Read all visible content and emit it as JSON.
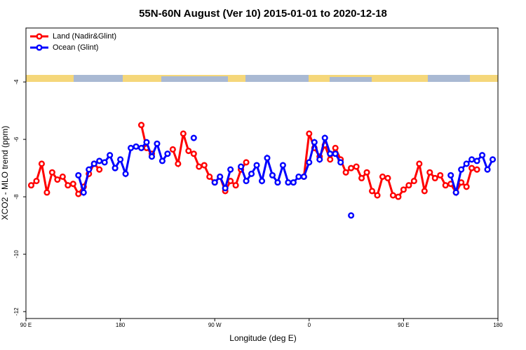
{
  "chart_data": {
    "type": "line",
    "title": "55N-60N August (Ver 10)   2015-01-01 to 2020-12-18",
    "x_label": "Longitude (deg E)",
    "y_label": "XCO2 - MLO trend (ppm)",
    "x": [
      95,
      100,
      105,
      110,
      115,
      120,
      125,
      130,
      135,
      140,
      145,
      150,
      155,
      160,
      165,
      170,
      175,
      180,
      185,
      190,
      195,
      200,
      205,
      210,
      215,
      220,
      225,
      230,
      235,
      240,
      245,
      250,
      255,
      260,
      265,
      270,
      275,
      280,
      285,
      290,
      295,
      300,
      305,
      310,
      315,
      320,
      325,
      330,
      335,
      340,
      345,
      350,
      355,
      360,
      365,
      370,
      375,
      380,
      385,
      390,
      395,
      400,
      405,
      410,
      415,
      420,
      425,
      430,
      435,
      440,
      445,
      450,
      455,
      460,
      465,
      470,
      475,
      480,
      485,
      490,
      495,
      500,
      505,
      510,
      515,
      520,
      525,
      530,
      535
    ],
    "series": [
      {
        "name": "Land (Nadir&Glint)",
        "color": "#ff0000",
        "values": [
          -7.6,
          -7.45,
          -6.85,
          -7.85,
          -7.15,
          -7.4,
          -7.3,
          -7.6,
          -7.55,
          -7.9,
          -7.65,
          -7.2,
          -6.85,
          -7.05,
          null,
          null,
          null,
          null,
          null,
          null,
          null,
          -5.5,
          -6.3,
          -6.5,
          null,
          null,
          null,
          -6.35,
          -6.85,
          -5.8,
          -6.4,
          -6.5,
          -6.95,
          -6.9,
          -7.3,
          -7.5,
          -7.3,
          -7.8,
          -7.45,
          -7.6,
          -7.05,
          -6.8,
          null,
          null,
          null,
          null,
          null,
          null,
          null,
          null,
          null,
          null,
          -7.3,
          -5.8,
          -6.3,
          -6.6,
          -6.2,
          -6.7,
          -6.3,
          -6.7,
          -7.15,
          -7.0,
          -6.95,
          -7.35,
          -7.15,
          -7.8,
          -7.95,
          -7.3,
          -7.35,
          -7.95,
          -8.0,
          -7.75,
          -7.6,
          -7.45,
          -6.85,
          -7.8,
          -7.15,
          -7.35,
          -7.25,
          -7.6,
          -7.55,
          -7.85,
          -7.5,
          -7.65,
          -7.0,
          -7.05,
          null,
          null,
          null
        ]
      },
      {
        "name": "Ocean (Glint)",
        "color": "#0000ff",
        "values": [
          null,
          null,
          null,
          null,
          null,
          null,
          null,
          null,
          null,
          -7.25,
          -7.85,
          -7.05,
          -6.85,
          -6.75,
          -6.8,
          -6.55,
          -7.0,
          -6.7,
          -7.2,
          -6.3,
          -6.25,
          -6.3,
          -6.1,
          -6.6,
          -6.15,
          -6.75,
          -6.5,
          null,
          null,
          null,
          null,
          -5.95,
          null,
          null,
          null,
          -7.5,
          -7.3,
          -7.7,
          -7.05,
          null,
          -6.95,
          -7.45,
          -7.2,
          -6.9,
          -7.45,
          -6.65,
          -7.25,
          -7.5,
          -6.9,
          -7.5,
          -7.5,
          -7.3,
          -7.3,
          -6.8,
          -6.1,
          -6.7,
          -5.95,
          -6.5,
          -6.5,
          -6.8,
          null,
          -8.65,
          null,
          null,
          null,
          null,
          null,
          null,
          null,
          null,
          null,
          null,
          null,
          null,
          null,
          null,
          null,
          null,
          null,
          null,
          -7.25,
          -7.85,
          -7.05,
          -6.85,
          -6.7,
          -6.75,
          -6.55,
          -7.05,
          -6.7
        ]
      }
    ],
    "xlim": [
      90,
      540
    ],
    "xticks": [
      {
        "value": 90,
        "label": "90 E"
      },
      180,
      {
        "value": 270,
        "label": "90 W"
      },
      {
        "value": 360,
        "label": "0"
      },
      {
        "value": 450,
        "label": "90 E"
      },
      {
        "value": 540,
        "label": "180"
      }
    ],
    "ylim": [
      -12.24,
      -2.12
    ],
    "yticks": [
      -4,
      -6,
      -8,
      -10,
      -12
    ],
    "legend": "top-left"
  }
}
